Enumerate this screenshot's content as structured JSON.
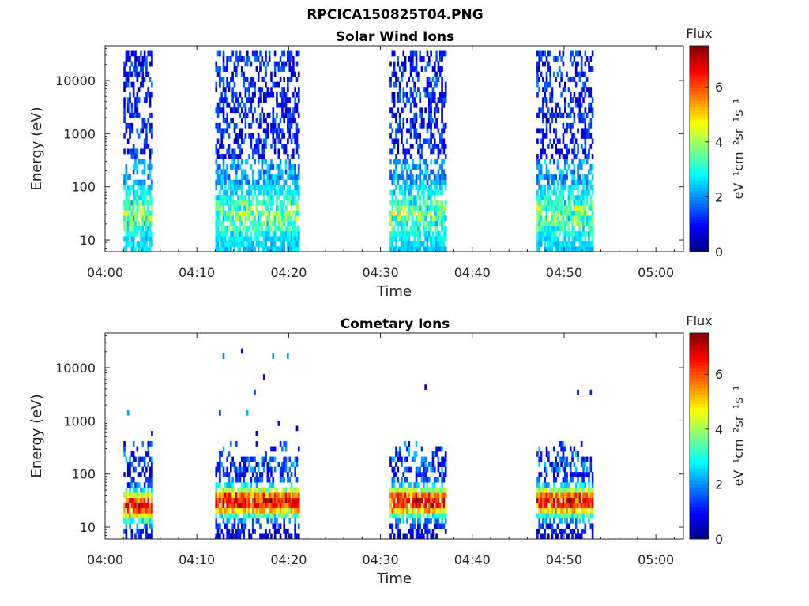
{
  "figure": {
    "title": "RPCICA150825T04.PNG"
  },
  "chart_data": [
    {
      "type": "heatmap",
      "title": "Solar Wind Ions",
      "xlabel": "Time",
      "ylabel": "Energy (eV)",
      "x_range": [
        "04:00",
        "05:03"
      ],
      "x_ticks": [
        "04:00",
        "04:10",
        "04:20",
        "04:30",
        "04:40",
        "04:50",
        "05:00"
      ],
      "y_scale": "log",
      "y_range": [
        6,
        45000
      ],
      "y_ticks": [
        "10",
        "100",
        "1000",
        "10000"
      ],
      "colorbar": {
        "label": "Flux",
        "unit": "eV⁻¹cm⁻²sr⁻¹s⁻¹",
        "ticks": [
          "0",
          "2",
          "4",
          "6"
        ],
        "range": [
          0,
          7.5
        ],
        "colormap": "jet"
      },
      "grid": false,
      "bursts": [
        {
          "start": "04:02",
          "end": "04:05",
          "peak_flux": 5.0,
          "peak_energy_ev": 30
        },
        {
          "start": "04:12",
          "end": "04:21",
          "peak_flux": 4.5,
          "peak_energy_ev": 30
        },
        {
          "start": "04:31",
          "end": "04:37",
          "peak_flux": 4.5,
          "peak_energy_ev": 30
        },
        {
          "start": "04:47",
          "end": "04:53",
          "peak_flux": 4.5,
          "peak_energy_ev": 30
        }
      ]
    },
    {
      "type": "heatmap",
      "title": "Cometary Ions",
      "xlabel": "Time",
      "ylabel": "Energy (eV)",
      "x_range": [
        "04:00",
        "05:03"
      ],
      "x_ticks": [
        "04:00",
        "04:10",
        "04:20",
        "04:30",
        "04:40",
        "04:50",
        "05:00"
      ],
      "y_scale": "log",
      "y_range": [
        6,
        45000
      ],
      "y_ticks": [
        "10",
        "100",
        "1000",
        "10000"
      ],
      "colorbar": {
        "label": "Flux",
        "unit": "eV⁻¹cm⁻²sr⁻¹s⁻¹",
        "ticks": [
          "0",
          "2",
          "4",
          "6"
        ],
        "range": [
          0,
          7.5
        ],
        "colormap": "jet"
      },
      "grid": false,
      "bursts": [
        {
          "start": "04:02",
          "end": "04:05",
          "peak_flux": 7.0,
          "peak_energy_ev": 25
        },
        {
          "start": "04:12",
          "end": "04:21",
          "peak_flux": 7.0,
          "peak_energy_ev": 30
        },
        {
          "start": "04:31",
          "end": "04:37",
          "peak_flux": 7.0,
          "peak_energy_ev": 30
        },
        {
          "start": "04:47",
          "end": "04:53",
          "peak_flux": 7.0,
          "peak_energy_ev": 30
        }
      ]
    }
  ]
}
